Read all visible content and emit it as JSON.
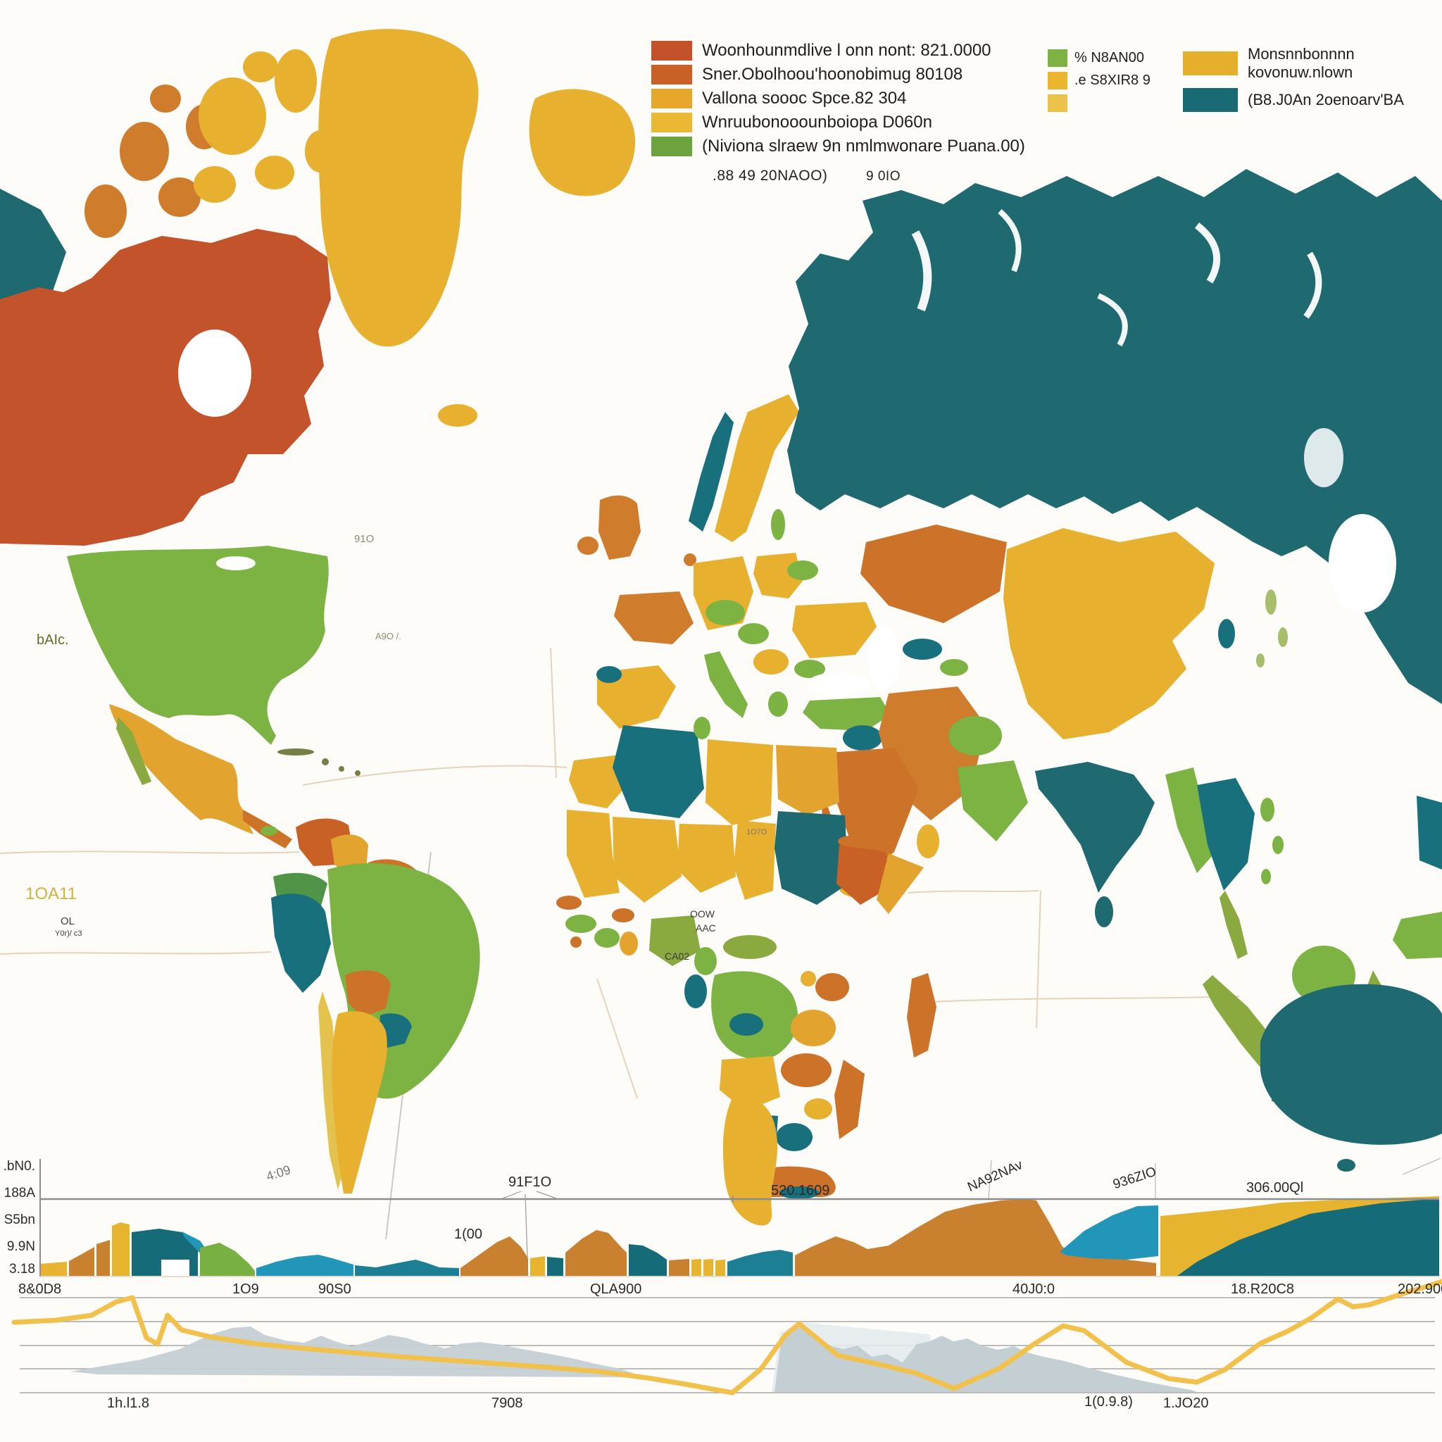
{
  "window": {
    "background": "#fdfcf8"
  },
  "colors": {
    "red": "#c3532a",
    "orangeDark": "#c96127",
    "orange": "#cc7229",
    "orangeMid": "#d07c2d",
    "yellowDeep": "#e2a42e",
    "yellow": "#e7b02e",
    "yellowPale": "#e3c34e",
    "green": "#7cb343",
    "greenDark": "#4f9447",
    "greenOlive": "#8aa93e",
    "tealDark": "#1e6a70",
    "teal": "#17707b",
    "tealMid": "#1d7f93",
    "blue": "#2b9fc0",
    "speck": "#5f6a25",
    "areaOrange": "#c9812f",
    "areaYellow": "#e6b42f",
    "areaTeal": "#156b77",
    "areaBlue": "#2196b8",
    "areaGreen": "#79b042",
    "axis": "#8d8d8d",
    "grid": "#8a8a8a",
    "graticule": "#e5d3bb",
    "calloutLine": "#9a9a9a",
    "greyArea": "#c4cfd4",
    "greyAreaLight": "#e4ebed",
    "lineYellow": "#f2c14b",
    "white": "#ffffff",
    "legend1_1": "#c3512a",
    "legend1_2": "#c96127",
    "legend1_3": "#e7a72b",
    "legend1_4": "#eab832",
    "legend1_5": "#6ba33e",
    "legend2_1": "#7cb343",
    "legend2_2": "#eab630",
    "legend2_3": "#ebc24a",
    "legend3_1": "#e6af2b",
    "legend3_2": "#186a73"
  },
  "legend_main": {
    "items": [
      {
        "label": "Woonhounmdlive l onn nont: 821.0000"
      },
      {
        "label": "Sner.Obolhoou'hoonobimug 80108"
      },
      {
        "label": "Vallona soooc  Spce.82 304"
      },
      {
        "label": "Wnruubonooounboiopa D060n"
      },
      {
        "label": "(Niviona slraew 9n nmlmwonare Puana.00)"
      }
    ],
    "caption_left": ".88 49   20NAOO)",
    "caption_right": "9 0IO"
  },
  "legend_mid": {
    "items": [
      {
        "label": "% N8AN00"
      },
      {
        "label": ".e S8XIR8 9"
      },
      {
        "label": ""
      }
    ]
  },
  "legend_right": {
    "items": [
      {
        "label": "Monsnnbonnnn kovonuw.nlown"
      },
      {
        "label": "(B8.J0An 2oenoarv'BA"
      }
    ]
  },
  "map_labels": [
    {
      "text": "bAIc.",
      "color": "#6a6a28"
    },
    {
      "text": "91O",
      "color": "#8f8a7a"
    },
    {
      "text": "A9O /.",
      "color": "#8f8a7a"
    },
    {
      "text": "1OA11",
      "color": "#cfb33e"
    },
    {
      "text": "OL",
      "color": "#3a3a3a"
    },
    {
      "text": "Y0r)/ c3",
      "color": "#3a3a3a"
    },
    {
      "text": "OOW",
      "color": "#3a3a3a"
    },
    {
      "text": "AAC",
      "color": "#3a3a3a"
    },
    {
      "text": "CA02",
      "color": "#3a3a3a"
    },
    {
      "text": "1O7O",
      "color": "#777777"
    }
  ],
  "area_chart": {
    "y_ticks": [
      ".bN0.",
      "188A",
      "S5bn",
      "9.9N",
      "3.18"
    ],
    "x_labels": [
      "8&0D8",
      "1O9",
      "90S0",
      "QLA900",
      "40J0:0",
      "18.R20C8",
      "202.900"
    ],
    "annotations": {
      "a1": "4:09",
      "a2": "91F1O",
      "a3": "1(00",
      "a4": "520.1609",
      "a5": "NA92NAv",
      "a6": "936ZIO",
      "a7": "306.00Ql"
    }
  },
  "line_chart": {
    "x_labels": [
      "1h.l1.8",
      "7908",
      "1(0.9.8)",
      "1.JO20"
    ],
    "points": [
      [
        20,
        1878
      ],
      [
        80,
        1875
      ],
      [
        130,
        1868
      ],
      [
        165,
        1849
      ],
      [
        188,
        1843
      ],
      [
        208,
        1900
      ],
      [
        224,
        1909
      ],
      [
        238,
        1868
      ],
      [
        258,
        1889
      ],
      [
        300,
        1899
      ],
      [
        360,
        1908
      ],
      [
        430,
        1915
      ],
      [
        500,
        1921
      ],
      [
        570,
        1927
      ],
      [
        640,
        1932
      ],
      [
        710,
        1937
      ],
      [
        780,
        1942
      ],
      [
        850,
        1948
      ],
      [
        920,
        1957
      ],
      [
        980,
        1967
      ],
      [
        1040,
        1978
      ],
      [
        1080,
        1945
      ],
      [
        1115,
        1897
      ],
      [
        1135,
        1880
      ],
      [
        1190,
        1925
      ],
      [
        1250,
        1938
      ],
      [
        1300,
        1950
      ],
      [
        1355,
        1972
      ],
      [
        1420,
        1943
      ],
      [
        1470,
        1908
      ],
      [
        1510,
        1883
      ],
      [
        1540,
        1890
      ],
      [
        1600,
        1935
      ],
      [
        1660,
        1958
      ],
      [
        1700,
        1963
      ],
      [
        1740,
        1945
      ],
      [
        1790,
        1908
      ],
      [
        1830,
        1890
      ],
      [
        1862,
        1872
      ],
      [
        1900,
        1845
      ],
      [
        1922,
        1856
      ],
      [
        1945,
        1853
      ],
      [
        1990,
        1838
      ],
      [
        2030,
        1826
      ],
      [
        2048,
        1820
      ]
    ]
  },
  "chart_data": [
    {
      "type": "area",
      "title": "",
      "x_axis_labels": [
        "8&0D8",
        "1O9",
        "90S0",
        "QLA900",
        "40J0:0",
        "18.R20C8",
        "202.900"
      ],
      "y_tick_labels": [
        ".bN0.",
        "188A",
        "S5bn",
        "9.9N",
        "3.18"
      ],
      "ylim": [
        0,
        100
      ],
      "segments": [
        {
          "color": "#e6b42f",
          "height_pct": 16
        },
        {
          "color": "#c9812f",
          "height_pct": 38
        },
        {
          "color": "#c9812f",
          "height_pct": 47
        },
        {
          "color": "#e6b42f",
          "height_pct": 70
        },
        {
          "color": "#156b77",
          "height_pct": 62
        },
        {
          "color": "#2196b8",
          "height_pct": 55
        },
        {
          "color": "#79b042",
          "height_pct": 44
        },
        {
          "color": "#2196b8",
          "height_pct": 28
        },
        {
          "color": "#1d7f93",
          "height_pct": 17
        },
        {
          "color": "#c9812f",
          "height_pct": 52
        },
        {
          "color": "#e6b42f",
          "height_pct": 26
        },
        {
          "color": "#156b77",
          "height_pct": 25
        },
        {
          "color": "#c9812f",
          "height_pct": 60
        },
        {
          "color": "#156b77",
          "height_pct": 42
        },
        {
          "color": "#c9812f",
          "height_pct": 22
        },
        {
          "color": "#e6b42f",
          "height_pct": 22
        },
        {
          "color": "#1d7f93",
          "height_pct": 35
        },
        {
          "color": "#c9812f",
          "height_pct": 100
        },
        {
          "color": "#2196b8",
          "height_pct": 93
        },
        {
          "color": "#e6b42f",
          "height_pct": 100
        },
        {
          "color": "#156b77",
          "height_pct": 100
        }
      ],
      "annotations": [
        "4:09",
        "91F1O",
        "1(00",
        "520.1609",
        "NA92NAv",
        "936ZIO",
        "306.00Ql"
      ]
    },
    {
      "type": "line",
      "color": "#f2c14b",
      "x_axis_labels": [
        "1h.l1.8",
        "7908",
        "1(0.9.8)",
        "1.JO20"
      ],
      "grid": true,
      "values_pct": [
        74,
        76,
        81,
        96,
        100,
        58,
        51,
        81,
        66,
        59,
        52,
        47,
        42,
        38,
        34,
        30,
        27,
        22,
        16,
        8,
        0,
        24,
        60,
        73,
        39,
        30,
        21,
        4,
        26,
        52,
        70,
        65,
        32,
        15,
        11,
        24,
        52,
        65,
        79,
        99,
        90,
        93,
        104,
        113,
        117
      ],
      "areas": [
        {
          "name": "silhouette-left",
          "color": "#c4cfd4"
        },
        {
          "name": "silhouette-right",
          "color": "#c4cfd4"
        },
        {
          "name": "silhouette-wash",
          "color": "#e4ebed"
        }
      ]
    }
  ]
}
